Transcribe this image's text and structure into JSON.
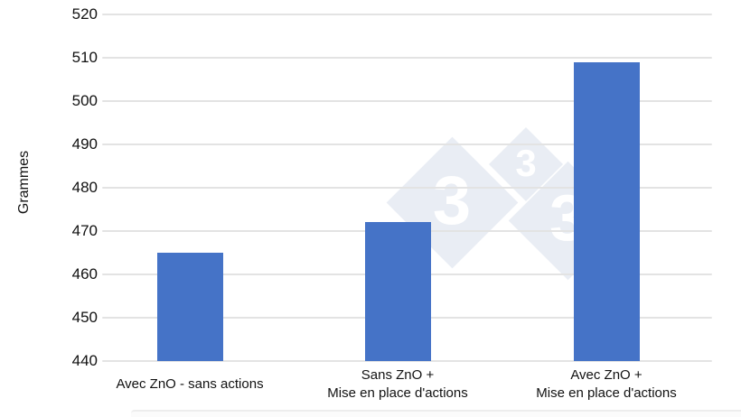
{
  "chart_data": {
    "type": "bar",
    "title": "",
    "xlabel": "",
    "ylabel": "Grammes",
    "categories": [
      "Avec ZnO - sans actions",
      "Sans ZnO +\nMise en place d'actions",
      "Avec ZnO +\nMise en place d'actions"
    ],
    "values": [
      465,
      472,
      509
    ],
    "ylim": [
      440,
      520
    ],
    "ytick_step": 10,
    "ytick_labels": [
      "440",
      "450",
      "460",
      "470",
      "480",
      "490",
      "500",
      "510",
      "520"
    ],
    "bar_color": "#4573c7",
    "gridline_color": "#e3e3e3",
    "text_color": "#111111",
    "grid": "horizontal-only",
    "legend_position": "none"
  },
  "watermark": {
    "digit": "3",
    "diamond_color": "#e9edf4",
    "digit_color": "#ffffff"
  }
}
